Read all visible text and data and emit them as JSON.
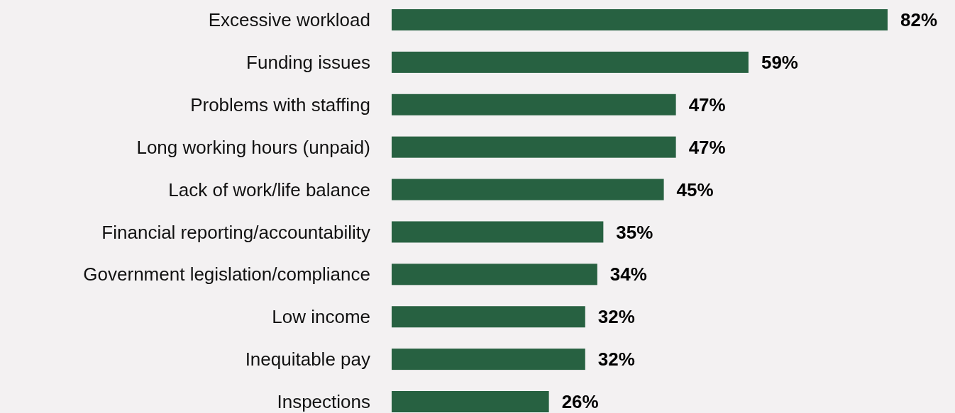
{
  "chart_data": {
    "type": "bar",
    "orientation": "horizontal",
    "categories": [
      "Excessive workload",
      "Funding issues",
      "Problems with staffing",
      "Long working hours (unpaid)",
      "Lack of work/life balance",
      "Financial reporting/accountability",
      "Government legislation/compliance",
      "Low income",
      "Inequitable pay",
      "Inspections"
    ],
    "values": [
      82,
      59,
      47,
      47,
      45,
      35,
      34,
      32,
      32,
      26
    ],
    "value_labels": [
      "82%",
      "59%",
      "47%",
      "47%",
      "45%",
      "35%",
      "34%",
      "32%",
      "32%",
      "26%"
    ],
    "color": "#276141"
  }
}
